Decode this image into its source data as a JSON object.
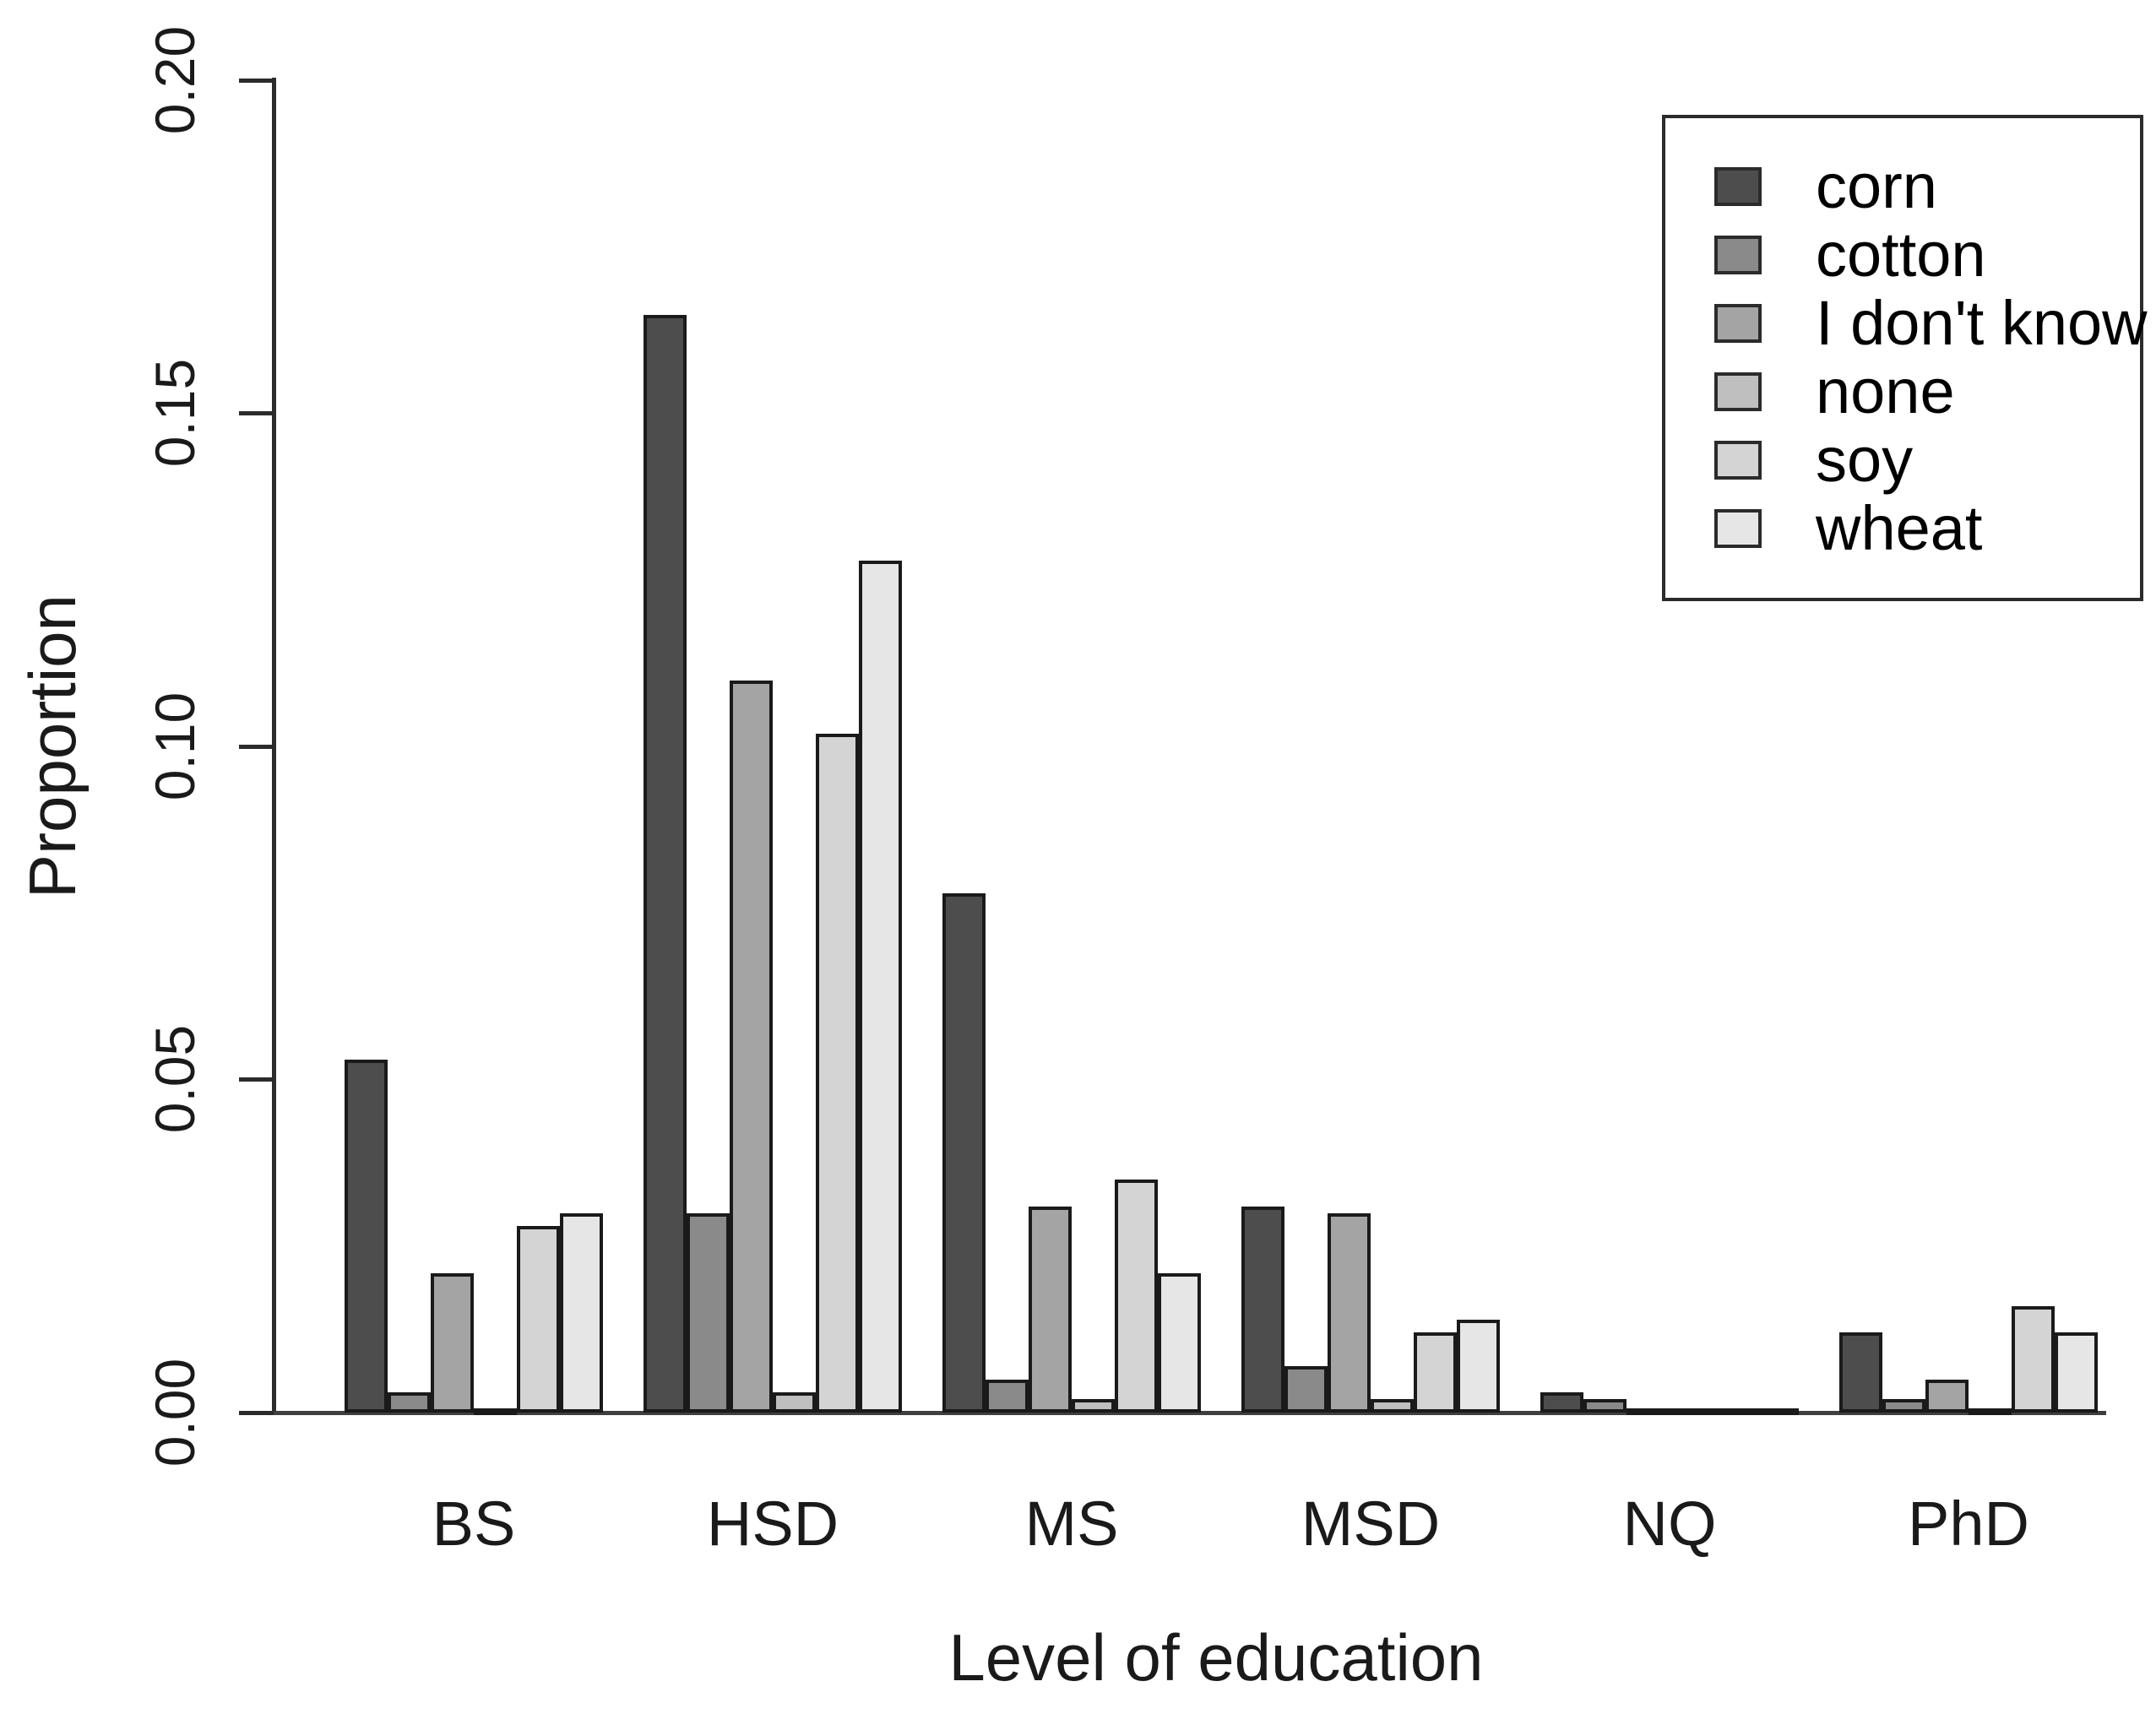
{
  "figure": {
    "background": "#ffffff",
    "axis_color": "#2b2b2b",
    "bar_border_color": "#1a1a1a"
  },
  "chart_data": {
    "type": "bar",
    "title": "",
    "xlabel": "Level of education",
    "ylabel": "Proportion",
    "categories": [
      "BS",
      "HSD",
      "MS",
      "MSD",
      "NQ",
      "PhD"
    ],
    "series": [
      {
        "name": "corn",
        "color": "#4D4D4D",
        "values": [
          0.053,
          0.165,
          0.078,
          0.031,
          0.003,
          0.012
        ]
      },
      {
        "name": "cotton",
        "color": "#8A8A8A",
        "values": [
          0.003,
          0.03,
          0.005,
          0.007,
          0.002,
          0.002
        ]
      },
      {
        "name": "I don't know",
        "color": "#A4A4A4",
        "values": [
          0.021,
          0.11,
          0.031,
          0.03,
          0.0,
          0.005
        ]
      },
      {
        "name": "none",
        "color": "#BFBFBF",
        "values": [
          0.0,
          0.003,
          0.002,
          0.002,
          0.0,
          0.0
        ]
      },
      {
        "name": "soy",
        "color": "#D4D4D4",
        "values": [
          0.028,
          0.102,
          0.035,
          0.012,
          0.0,
          0.016
        ]
      },
      {
        "name": "wheat",
        "color": "#E6E6E6",
        "values": [
          0.03,
          0.128,
          0.021,
          0.014,
          0.0,
          0.012
        ]
      }
    ],
    "yticks": [
      "0.00",
      "0.05",
      "0.10",
      "0.15",
      "0.20"
    ],
    "ylim": [
      0,
      0.2
    ],
    "grid": false,
    "legend_position": "top-right"
  }
}
